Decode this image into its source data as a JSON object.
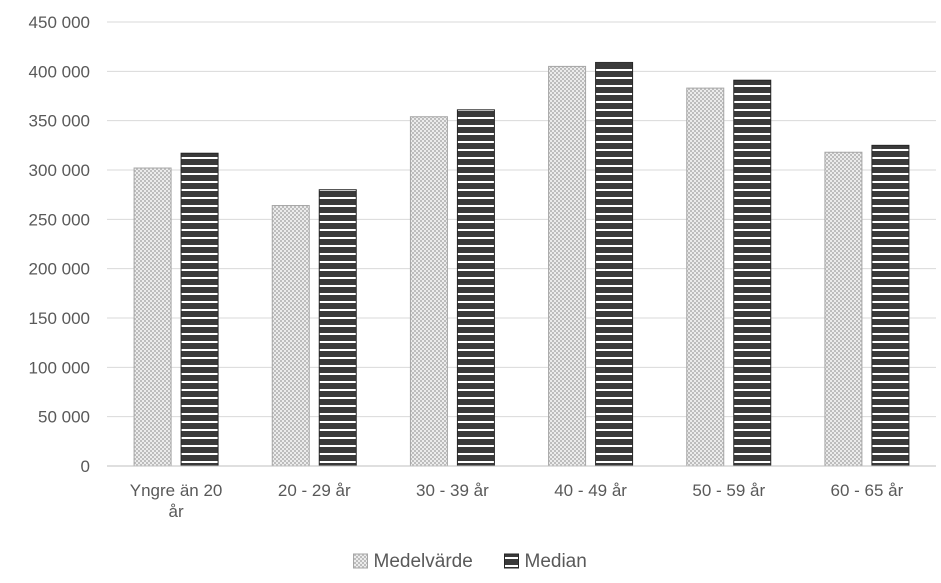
{
  "chart_data": {
    "type": "bar",
    "categories": [
      [
        "Yngre än 20",
        "år"
      ],
      [
        "20 - 29 år"
      ],
      [
        "30 - 39 år"
      ],
      [
        "40 - 49 år"
      ],
      [
        "50 - 59 år"
      ],
      [
        "60 - 65 år"
      ]
    ],
    "series": [
      {
        "name": "Medelvärde",
        "values": [
          302000,
          264000,
          354000,
          405000,
          383000,
          318000
        ],
        "style": "checker",
        "color": "#d9d9d9"
      },
      {
        "name": "Median",
        "values": [
          317000,
          280000,
          361000,
          409000,
          391000,
          325000
        ],
        "style": "stripes",
        "color": "#404040"
      }
    ],
    "ylim": [
      0,
      450000
    ],
    "y_tick_step": 50000,
    "y_tick_labels": [
      "0",
      "50 000",
      "100 000",
      "150 000",
      "200 000",
      "250 000",
      "300 000",
      "350 000",
      "400 000",
      "450 000"
    ],
    "grid": true,
    "legend_position": "bottom",
    "title": "",
    "xlabel": "",
    "ylabel": ""
  }
}
